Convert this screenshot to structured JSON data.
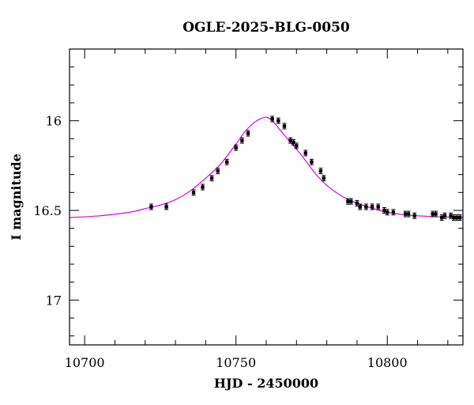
{
  "chart_data": {
    "type": "scatter",
    "title": "OGLE-2025-BLG-0050",
    "xlabel": "HJD - 2450000",
    "ylabel": "I magnitude",
    "xlim": [
      10695,
      10825
    ],
    "ylim": [
      17.25,
      15.6
    ],
    "y_inverted": true,
    "x_ticks": [
      10700,
      10750,
      10800
    ],
    "y_ticks": [
      16,
      16.5,
      17
    ],
    "grid": false,
    "series": [
      {
        "color": "#000000",
        "x": [
          10722,
          10727,
          10736,
          10739,
          10742,
          10744,
          10747,
          10750,
          10752,
          10754,
          10762,
          10764,
          10766,
          10768,
          10769,
          10770,
          10773,
          10775,
          10778,
          10779,
          10787,
          10788,
          10790,
          10791,
          10793,
          10795,
          10797,
          10799,
          10800,
          10802,
          10806,
          10807,
          10809,
          10815,
          10816,
          10818,
          10819,
          10821,
          10822,
          10823,
          10824
        ],
        "y": [
          16.48,
          16.48,
          16.4,
          16.37,
          16.32,
          16.28,
          16.23,
          16.15,
          16.11,
          16.07,
          15.99,
          16.0,
          16.03,
          16.11,
          16.12,
          16.14,
          16.18,
          16.23,
          16.28,
          16.32,
          16.45,
          16.45,
          16.46,
          16.48,
          16.48,
          16.48,
          16.48,
          16.5,
          16.51,
          16.51,
          16.52,
          16.52,
          16.53,
          16.52,
          16.52,
          16.54,
          16.53,
          16.53,
          16.54,
          16.54,
          16.54
        ]
      },
      {
        "color": "#e000e0",
        "line": true,
        "x": [
          10695,
          10705,
          10715,
          10720,
          10725,
          10730,
          10735,
          10740,
          10745,
          10750,
          10753,
          10756,
          10758,
          10760,
          10762,
          10765,
          10768,
          10772,
          10776,
          10780,
          10785,
          10790,
          10800,
          10810,
          10825
        ],
        "y": [
          16.54,
          16.53,
          16.51,
          16.49,
          16.47,
          16.44,
          16.39,
          16.32,
          16.24,
          16.13,
          16.06,
          16.01,
          15.99,
          15.98,
          16.0,
          16.06,
          16.12,
          16.2,
          16.29,
          16.36,
          16.42,
          16.46,
          16.51,
          16.53,
          16.54
        ]
      }
    ]
  }
}
